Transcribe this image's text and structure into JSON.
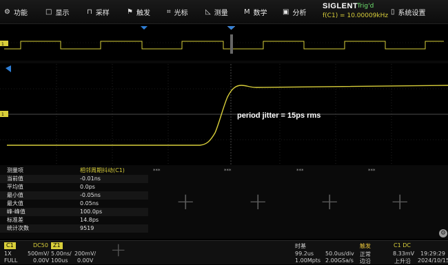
{
  "menu": {
    "items": [
      {
        "icon": "⚙",
        "label": "功能"
      },
      {
        "icon": "□",
        "label": "显示"
      },
      {
        "icon": "⊓",
        "label": "采样"
      },
      {
        "icon": "⚑",
        "label": "触发"
      },
      {
        "icon": "⌗",
        "label": "光标"
      },
      {
        "icon": "◺",
        "label": "测量"
      },
      {
        "icon": "M",
        "label": "数学"
      },
      {
        "icon": "▣",
        "label": "分析"
      },
      {
        "icon": "▯",
        "label": "系统设置"
      }
    ],
    "brand": "SIGLENT",
    "trigger_state": "Trig'd",
    "frequency": "f(C1) = 10.00009kHz"
  },
  "colors": {
    "ch1": "#d9cf3a",
    "trigger_marker": "#2f7fd6",
    "accent": "#e6c23a"
  },
  "scope": {
    "channel_marker": "1",
    "annotation": "period jitter = 15ps rms"
  },
  "measurement": {
    "header_label": "测量项",
    "header_value": "相邻周期抖动(C1)",
    "rows": [
      {
        "label": "当前值",
        "value": "-0.01ns"
      },
      {
        "label": "平均值",
        "value": "0.0ps"
      },
      {
        "label": "最小值",
        "value": "-0.05ns"
      },
      {
        "label": "最大值",
        "value": "0.05ns"
      },
      {
        "label": "峰-峰值",
        "value": "100.0ps"
      },
      {
        "label": "标准差",
        "value": "14.8ps"
      },
      {
        "label": "统计次数",
        "value": "9519"
      }
    ],
    "empty_slots": [
      "***",
      "***",
      "***",
      "***"
    ]
  },
  "status": {
    "c1_badge": "C1",
    "c1_coupling": "DC50",
    "c1_line1_a": "1X",
    "c1_line1_b": "500mV/",
    "c1_line2_a": "FULL",
    "c1_line2_b": "0.00V",
    "z1_badge": "Z1",
    "z1_line1_a": "5.00ns/",
    "z1_line1_b": "200mV/",
    "z1_line2_a": "100us",
    "z1_line2_b": "0.00V",
    "timebase_title": "时基",
    "timebase_delay": "99.2us",
    "timebase_scale": "50.0us/div",
    "memory": "1.00Mpts",
    "sample_rate": "2.00GSa/s",
    "trigger_title": "触发",
    "trigger_source": "C1 DC",
    "trigger_mode": "正常",
    "trigger_level": "8.33mV",
    "trigger_type": "边沿",
    "trigger_slope": "上升沿",
    "time": "19:29:29",
    "date": "2024/10/15"
  }
}
